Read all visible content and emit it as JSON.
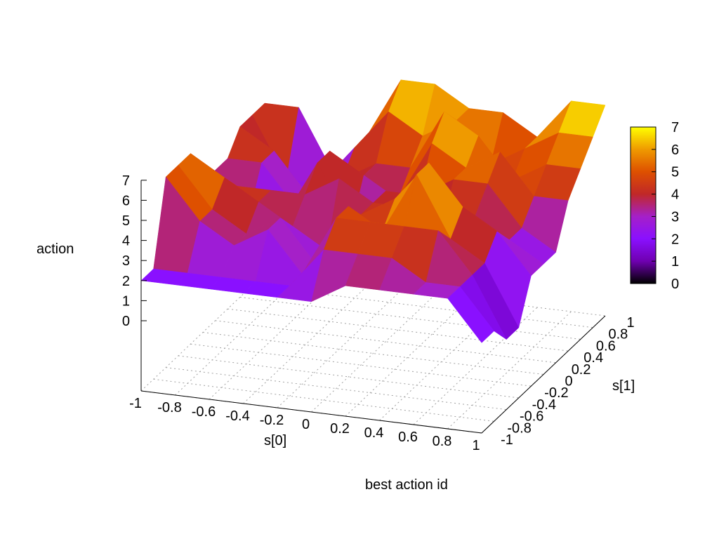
{
  "chart_data": {
    "type": "surface",
    "title": "best action id",
    "xlabel": "s[0]",
    "ylabel": "s[1]",
    "zlabel": "action",
    "xlim": [
      -1,
      1
    ],
    "ylim": [
      -1,
      1
    ],
    "zlim": [
      0,
      7
    ],
    "x_tick_labels": [
      "-1",
      "-0.8",
      "-0.6",
      "-0.4",
      "-0.2",
      "0",
      "0.2",
      "0.4",
      "0.6",
      "0.8",
      "1"
    ],
    "y_tick_labels": [
      "-1",
      "-0.8",
      "-0.6",
      "-0.4",
      "-0.2",
      "0",
      "0.2",
      "0.4",
      "0.6",
      "0.8",
      "1"
    ],
    "z_tick_labels": [
      "0",
      "1",
      "2",
      "3",
      "4",
      "5",
      "6",
      "7"
    ],
    "colorbar": {
      "range": [
        0,
        7
      ],
      "tick_labels": [
        "0",
        "1",
        "2",
        "3",
        "4",
        "5",
        "6",
        "7"
      ],
      "palette": [
        "#000000",
        "#6f00b0",
        "#8a10ff",
        "#a520c8",
        "#c02828",
        "#de5000",
        "#ef9a00",
        "#ffff00"
      ]
    },
    "grid": true,
    "x": [
      -1,
      -0.8,
      -0.6,
      -0.4,
      -0.2,
      0,
      0.2,
      0.4,
      0.6,
      0.8,
      1
    ],
    "y": [
      1,
      0.8,
      0.6,
      0.4,
      0.2,
      0,
      -0.2,
      -0.4,
      -0.6,
      -0.8,
      -1
    ],
    "z": [
      [
        5,
        5,
        2,
        4,
        7,
        7,
        6,
        6,
        5,
        7,
        7
      ],
      [
        5,
        2,
        2,
        4,
        6,
        5,
        6,
        4,
        5,
        6,
        6
      ],
      [
        5,
        4,
        2,
        3,
        4,
        4,
        7,
        6,
        4,
        5,
        5
      ],
      [
        4,
        4,
        2,
        5,
        4,
        3,
        6,
        5,
        6,
        4,
        4
      ],
      [
        4,
        2,
        2,
        5,
        2,
        4,
        4,
        5,
        5,
        3,
        2
      ],
      [
        3,
        4,
        4,
        4,
        5,
        4,
        4,
        3,
        4,
        3,
        2
      ],
      [
        6,
        5,
        4,
        3,
        2,
        4,
        5,
        7,
        5,
        4,
        2
      ],
      [
        6,
        4,
        3,
        4,
        2,
        5,
        4,
        7,
        4,
        3,
        0
      ],
      [
        6,
        4,
        3,
        4,
        2,
        5,
        5,
        5,
        5,
        3,
        0
      ],
      [
        2,
        2,
        2,
        2,
        2,
        4,
        4,
        4,
        3,
        3,
        1
      ],
      [
        2,
        2,
        2,
        2,
        2,
        2,
        3,
        3,
        3,
        3,
        1
      ]
    ]
  }
}
